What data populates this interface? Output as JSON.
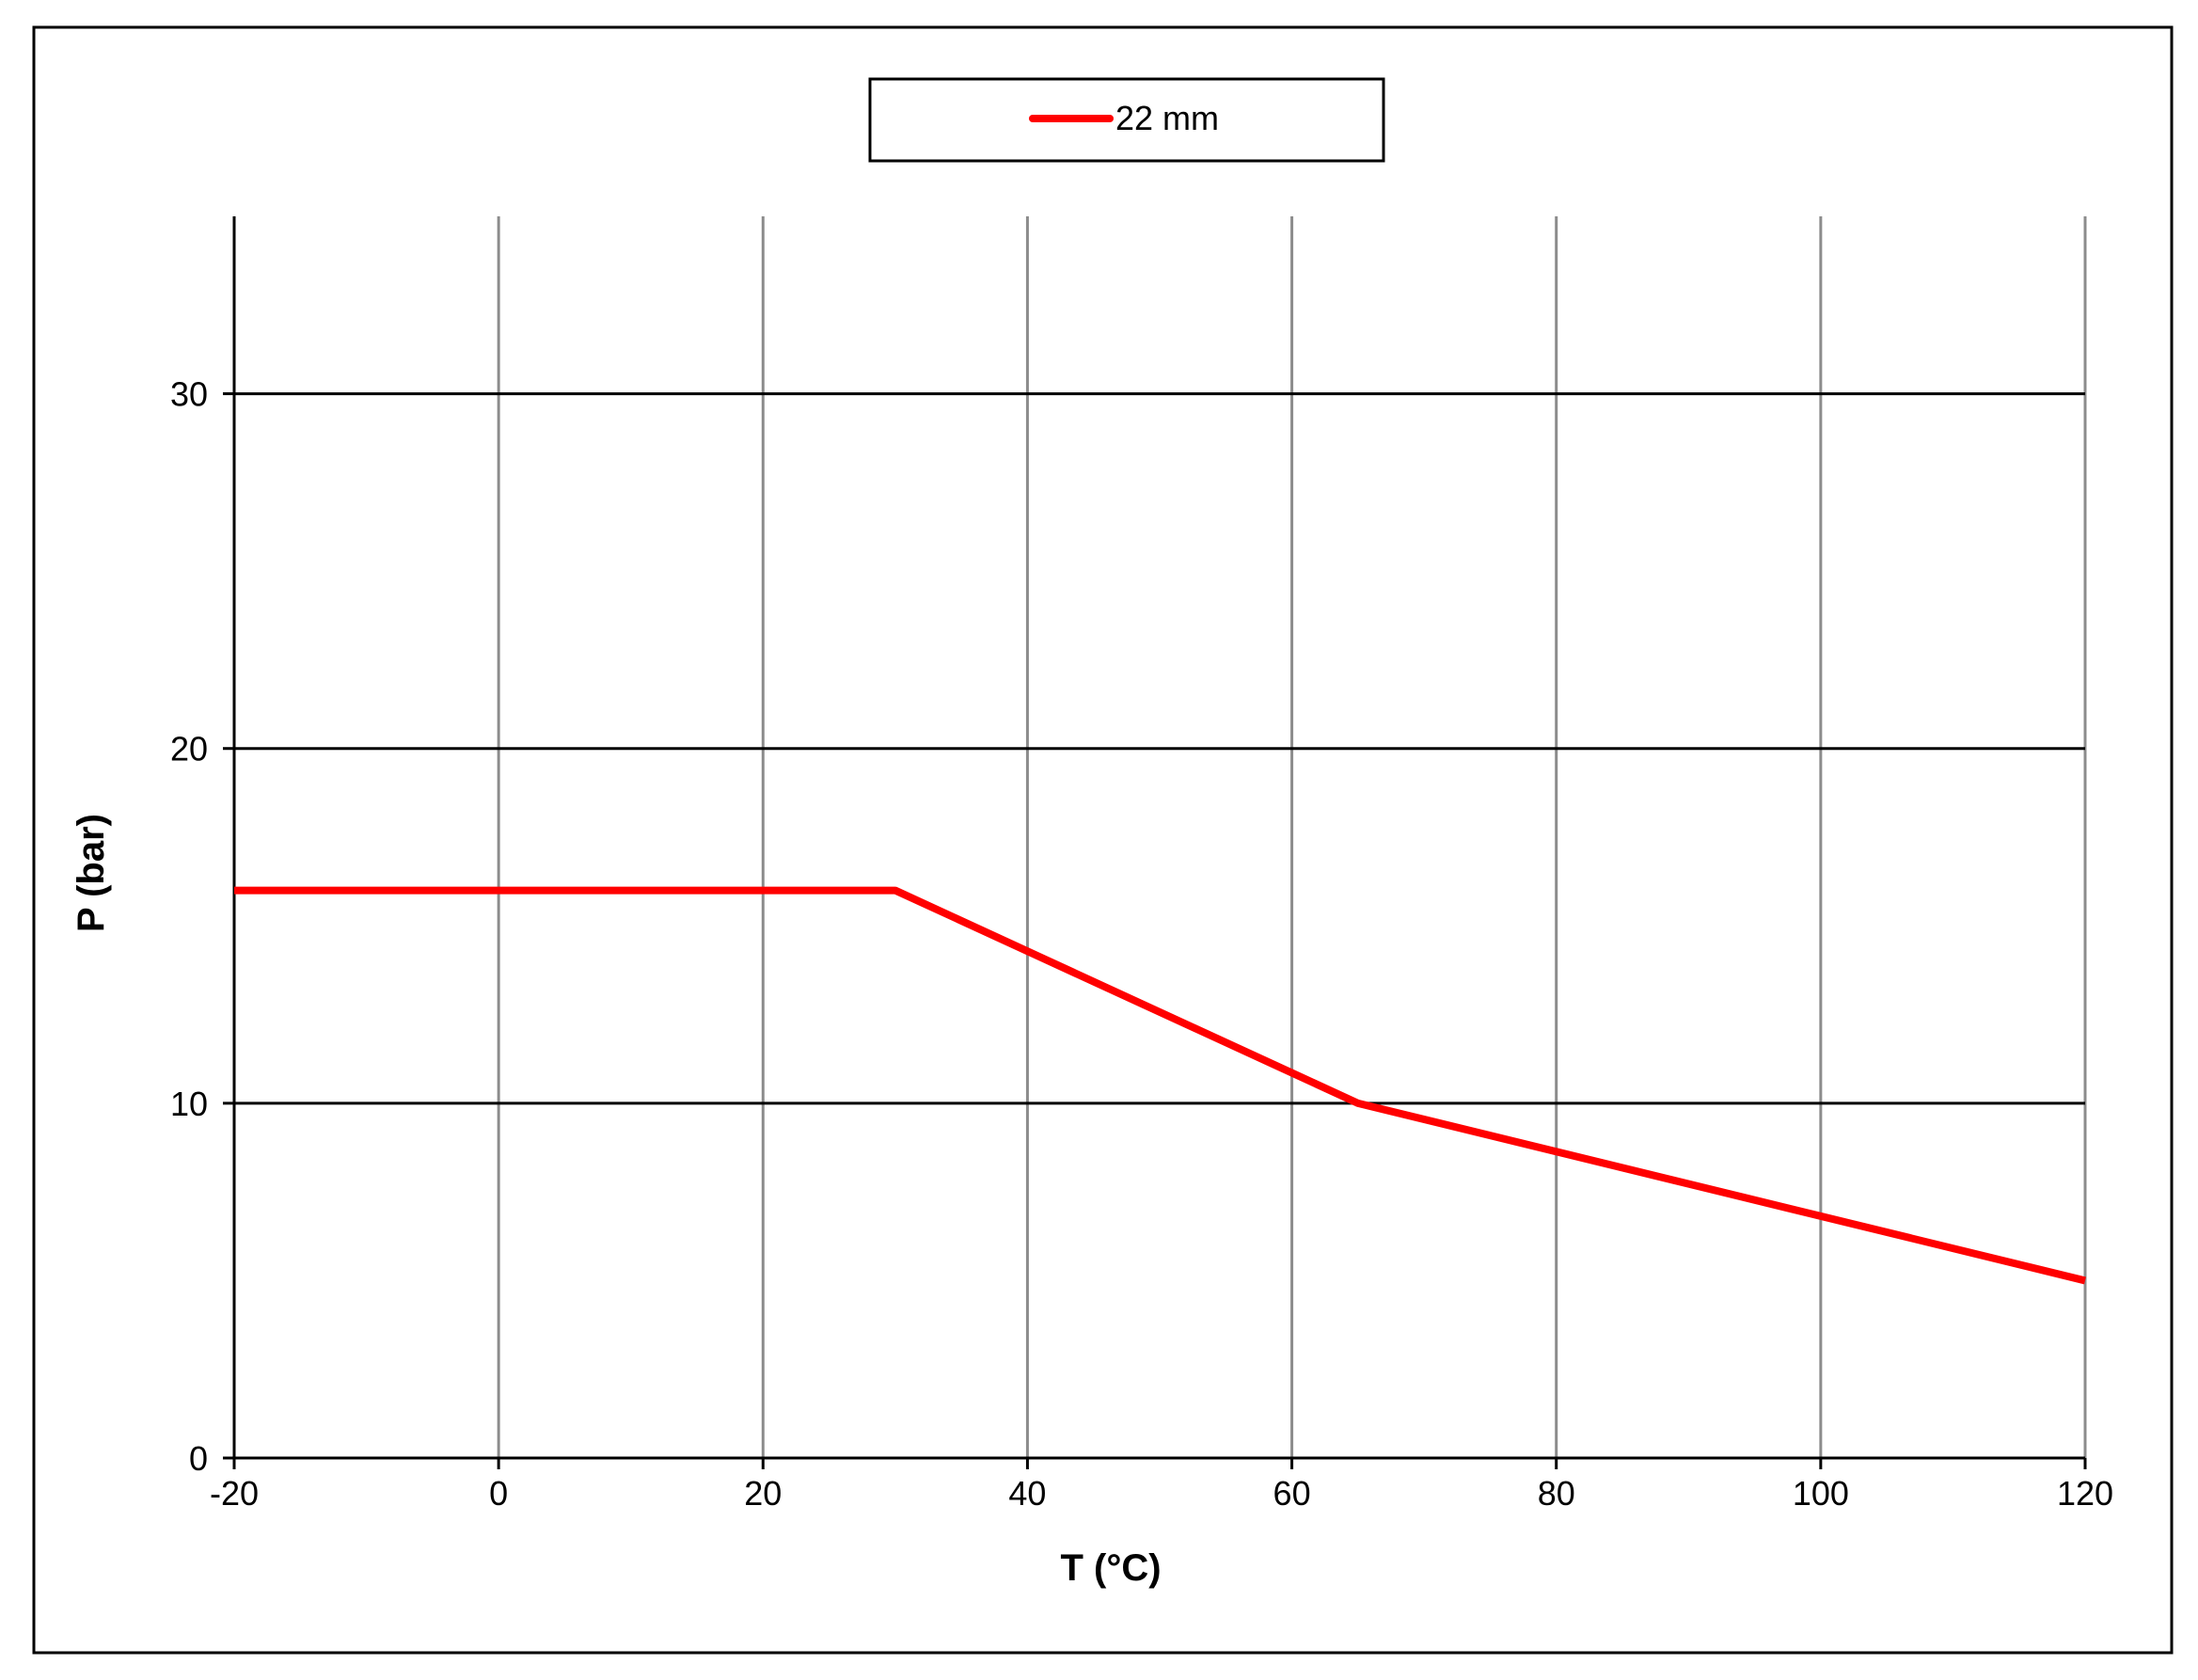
{
  "chart_data": {
    "type": "line",
    "xlabel": "T (°C)",
    "ylabel": "P (bar)",
    "xlim": [
      -20,
      120
    ],
    "ylim": [
      0,
      35
    ],
    "xticks": [
      -20,
      0,
      20,
      40,
      60,
      80,
      100,
      120
    ],
    "yticks": [
      0,
      10,
      20,
      30
    ],
    "vertical_grid": true,
    "horizontal_grid": true,
    "legend_position": "top-center",
    "series": [
      {
        "name": "22 mm",
        "color": "#ff0000",
        "x": [
          -20,
          30,
          65,
          120
        ],
        "y": [
          16,
          16,
          10,
          5
        ]
      }
    ]
  }
}
